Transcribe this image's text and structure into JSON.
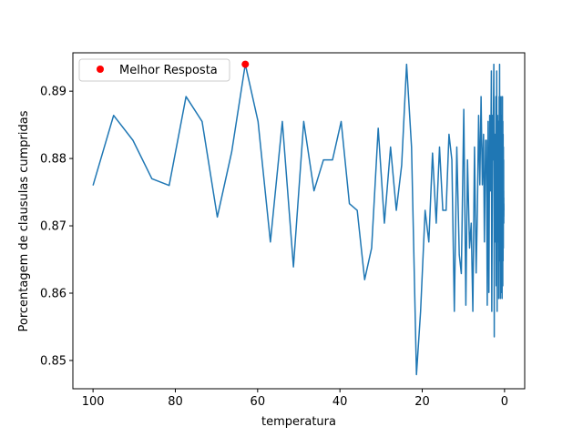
{
  "chart_data": {
    "type": "line",
    "xlabel": "temperatura",
    "ylabel": "Porcentagem de clausulas cumpridas",
    "xlim": [
      104.9,
      -4.9
    ],
    "ylim": [
      0.8458,
      0.8957
    ],
    "x_ticks": [
      100,
      80,
      60,
      40,
      20,
      0
    ],
    "x_tick_labels": [
      "100",
      "80",
      "60",
      "40",
      "20",
      "0"
    ],
    "y_ticks": [
      0.85,
      0.86,
      0.87,
      0.88,
      0.89
    ],
    "y_tick_labels": [
      "0.85",
      "0.86",
      "0.87",
      "0.88",
      "0.89"
    ],
    "grid": false,
    "legend": {
      "placement": "top-left",
      "entries": [
        "Melhor Resposta"
      ]
    },
    "colors": {
      "line": "#1f77b4",
      "marker": "#ff0000"
    },
    "series": [
      {
        "values_x": [
          100,
          95,
          90.3,
          85.7,
          81.5,
          77.4,
          73.5,
          69.8,
          66.3,
          63.0,
          59.9,
          56.9,
          54.0,
          51.3,
          48.8,
          46.3,
          44.0,
          41.8,
          39.7,
          37.7,
          35.8,
          34.0,
          32.3,
          30.7,
          29.2,
          27.7,
          26.3,
          25.0,
          23.8,
          22.6,
          21.4,
          20.4,
          19.3,
          18.4,
          17.5,
          16.6,
          15.8,
          15.0,
          14.2,
          13.5,
          12.8,
          12.2,
          11.6,
          11.0,
          10.5,
          9.9,
          9.4,
          9.0,
          8.5,
          8.1,
          7.7,
          7.3,
          6.9,
          6.6,
          6.3,
          6.0,
          5.7,
          5.4,
          5.1,
          4.9,
          4.6,
          4.4,
          4.2,
          4.0,
          3.8,
          3.6,
          3.4,
          3.2,
          3.1,
          2.9,
          2.8,
          2.6,
          2.5,
          2.4,
          2.2,
          2.1,
          2.0,
          1.9,
          1.8,
          1.7,
          1.6,
          1.5,
          1.45,
          1.4,
          1.3,
          1.25,
          1.2,
          1.1,
          1.05,
          1.0,
          0.95,
          0.9,
          0.85,
          0.8,
          0.77,
          0.73,
          0.69,
          0.66,
          0.62,
          0.59,
          0.56,
          0.53,
          0.5,
          0.48,
          0.46,
          0.43,
          0.41,
          0.39,
          0.37,
          0.35,
          0.34,
          0.32,
          0.3,
          0.29,
          0.27,
          0.26,
          0.25,
          0.23,
          0.22,
          0.21,
          0.2,
          0.19,
          0.18,
          0.17,
          0.16,
          0.15
        ],
        "values_y": [
          0.876,
          0.8864,
          0.8827,
          0.877,
          0.876,
          0.8892,
          0.8855,
          0.8713,
          0.881,
          0.894,
          0.8855,
          0.8676,
          0.8855,
          0.8639,
          0.8855,
          0.8752,
          0.8798,
          0.8798,
          0.8855,
          0.8733,
          0.8723,
          0.862,
          0.8667,
          0.8845,
          0.8704,
          0.8817,
          0.8723,
          0.879,
          0.894,
          0.8817,
          0.8479,
          0.8573,
          0.8723,
          0.8676,
          0.8808,
          0.8704,
          0.8817,
          0.8723,
          0.8723,
          0.8836,
          0.8798,
          0.8573,
          0.8817,
          0.8657,
          0.8629,
          0.8873,
          0.8582,
          0.8798,
          0.8667,
          0.8704,
          0.8573,
          0.8817,
          0.863,
          0.8723,
          0.8864,
          0.8761,
          0.8892,
          0.8761,
          0.8836,
          0.8676,
          0.8827,
          0.8827,
          0.8582,
          0.8855,
          0.8601,
          0.8864,
          0.8752,
          0.893,
          0.8573,
          0.8864,
          0.8798,
          0.894,
          0.8535,
          0.8836,
          0.8676,
          0.8892,
          0.8611,
          0.893,
          0.8573,
          0.8864,
          0.8676,
          0.8855,
          0.8827,
          0.8592,
          0.8892,
          0.8704,
          0.894,
          0.8648,
          0.8817,
          0.8592,
          0.8855,
          0.8667,
          0.8892,
          0.8601,
          0.8836,
          0.8704,
          0.8864,
          0.8648,
          0.8817,
          0.8592,
          0.8855,
          0.8676,
          0.8892,
          0.8639,
          0.8827,
          0.8611,
          0.8855,
          0.8667,
          0.8808,
          0.8648,
          0.8836,
          0.8686,
          0.8798,
          0.8667,
          0.8817,
          0.8704,
          0.8761,
          0.8723,
          0.8798,
          0.8733,
          0.8752,
          0.8704,
          0.8742,
          0.8714,
          0.8733,
          0.8723
        ]
      }
    ],
    "best_point": {
      "name": "Melhor Resposta",
      "x": 63.0,
      "y": 0.894
    }
  }
}
